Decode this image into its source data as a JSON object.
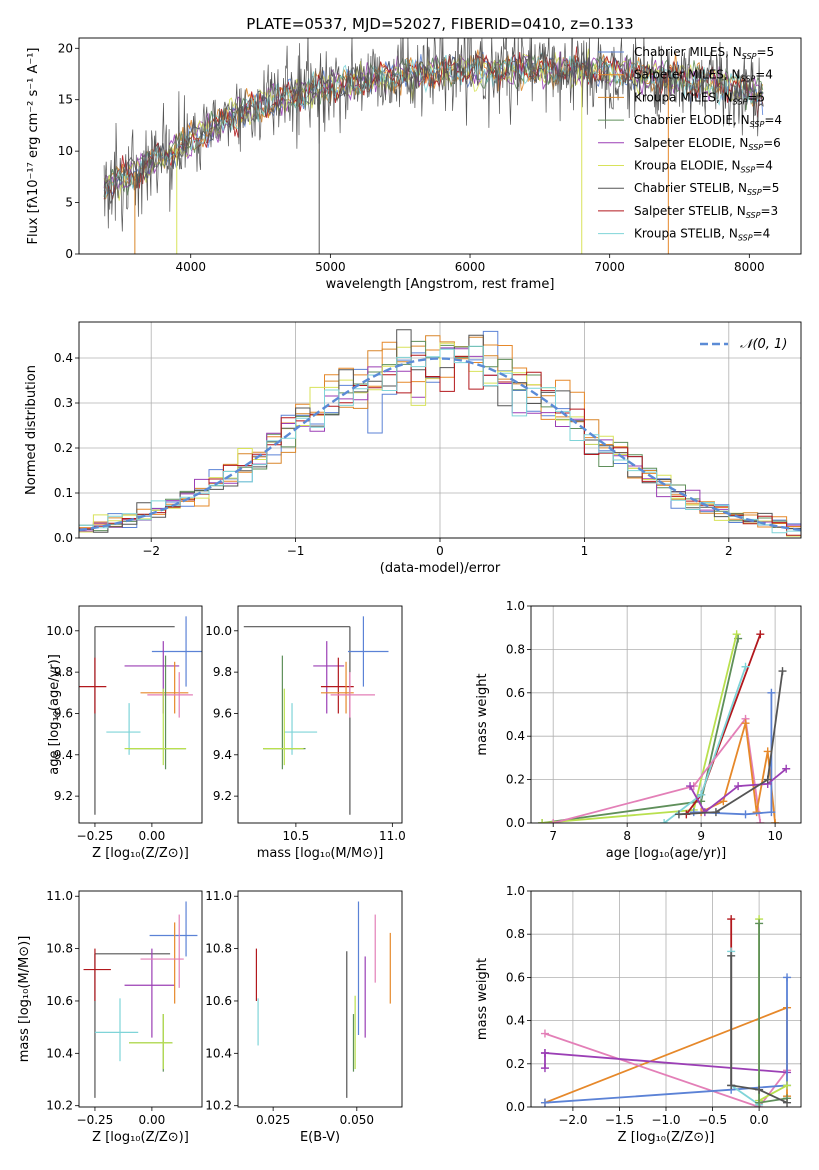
{
  "figure": {
    "title": "PLATE=0537, MJD=52027, FIBERID=0410, z=0.133"
  },
  "colors": {
    "Chabrier MILES": "#5b82d6",
    "Salpeter MILES": "#e6882a",
    "Kroupa MILES": "#d9862a",
    "Chabrier ELODIE": "#5f8f5a",
    "Salpeter ELODIE": "#9b3fb5",
    "Kroupa ELODIE": "#d8e25a",
    "Chabrier STELIB": "#555555",
    "Salpeter STELIB": "#b2181d",
    "Kroupa STELIB": "#7fd4d8",
    "normal": "#5b8bd6",
    "pink": "#e37fb7",
    "lime": "#b9e04e"
  },
  "chart_data": [
    {
      "id": "spectrum",
      "type": "line",
      "xlabel": "wavelength [Angstrom, rest frame]",
      "ylabel": "Flux [fλ10⁻¹⁷ erg cm⁻² s⁻¹ A⁻¹]",
      "xlim": [
        3200,
        8370
      ],
      "ylim": [
        0,
        21
      ],
      "xticks": [
        4000,
        5000,
        6000,
        7000,
        8000
      ],
      "yticks": [
        0,
        5,
        10,
        15,
        20
      ],
      "legend_position": "top-right",
      "legend": [
        {
          "label": "Chabrier MILES, N",
          "sub": "SSP",
          "tail": "=5",
          "key": "Chabrier MILES"
        },
        {
          "label": "Salpeter MILES, N",
          "sub": "SSP",
          "tail": "=4",
          "key": "Salpeter MILES"
        },
        {
          "label": "Kroupa MILES, N",
          "sub": "SSP",
          "tail": "=5",
          "key": "Kroupa MILES"
        },
        {
          "label": "Chabrier ELODIE, N",
          "sub": "SSP",
          "tail": "=4",
          "key": "Chabrier ELODIE"
        },
        {
          "label": "Salpeter ELODIE, N",
          "sub": "SSP",
          "tail": "=6",
          "key": "Salpeter ELODIE"
        },
        {
          "label": "Kroupa ELODIE, N",
          "sub": "SSP",
          "tail": "=4",
          "key": "Kroupa ELODIE"
        },
        {
          "label": "Chabrier STELIB, N",
          "sub": "SSP",
          "tail": "=5",
          "key": "Chabrier STELIB"
        },
        {
          "label": "Salpeter STELIB, N",
          "sub": "SSP",
          "tail": "=3",
          "key": "Salpeter STELIB"
        },
        {
          "label": "Kroupa STELIB, N",
          "sub": "SSP",
          "tail": "=4",
          "key": "Kroupa STELIB"
        }
      ],
      "continuum": [
        [
          3380,
          6.5
        ],
        [
          3600,
          8.0
        ],
        [
          3800,
          9.5
        ],
        [
          4000,
          11.0
        ],
        [
          4300,
          13.5
        ],
        [
          4600,
          15.0
        ],
        [
          5000,
          16.3
        ],
        [
          5500,
          17.5
        ],
        [
          6000,
          17.8
        ],
        [
          6500,
          18.0
        ],
        [
          7000,
          17.8
        ],
        [
          7500,
          17.0
        ],
        [
          7800,
          16.5
        ],
        [
          8100,
          15.3
        ]
      ],
      "data_noise_amplitude": 2.0,
      "model_dropouts": [
        {
          "key": "Kroupa MILES",
          "x": 3600
        },
        {
          "key": "Kroupa ELODIE",
          "x": 3900
        },
        {
          "key": "Kroupa ELODIE",
          "x": 6800
        },
        {
          "key": "Salpeter MILES",
          "x": 7420
        },
        {
          "key": "Chabrier STELIB",
          "x": 4920
        }
      ]
    },
    {
      "id": "residuals",
      "type": "histogram",
      "xlabel": "(data-model)/error",
      "ylabel": "Normed distribution",
      "xlim": [
        -2.5,
        2.5
      ],
      "ylim": [
        0,
        0.48
      ],
      "xticks": [
        -2,
        -1,
        0,
        1,
        2
      ],
      "yticks": [
        0.0,
        0.1,
        0.2,
        0.3,
        0.4
      ],
      "grid": true,
      "bin_width": 0.1,
      "legend_label": "N(0,1)",
      "legend_position": "top-right"
    },
    {
      "id": "age_vs_Z",
      "type": "scatter",
      "xlabel": "Z [log₁₀(Z/Z⊙)]",
      "ylabel": "age  [log₁₀(age/yr)]",
      "xlim": [
        -0.32,
        0.22
      ],
      "ylim": [
        9.07,
        10.12
      ],
      "xticks": [
        -0.25,
        0.0
      ],
      "yticks": [
        9.2,
        9.4,
        9.6,
        9.8,
        10.0
      ],
      "points": [
        {
          "c": "#555555",
          "x": -0.25,
          "xl": -0.25,
          "xh": 0.1,
          "y": 10.02,
          "yl": 9.11,
          "yh": 10.02
        },
        {
          "c": "#5b82d6",
          "x": 0.15,
          "xl": 0.0,
          "xh": 0.22,
          "y": 9.9,
          "yl": 9.73,
          "yh": 10.07
        },
        {
          "c": "#9b3fb5",
          "x": 0.05,
          "xl": -0.12,
          "xh": 0.12,
          "y": 9.83,
          "yl": 9.6,
          "yh": 9.95
        },
        {
          "c": "#b2181d",
          "x": -0.25,
          "xl": -0.32,
          "xh": -0.2,
          "y": 9.73,
          "yl": 9.6,
          "yh": 9.87
        },
        {
          "c": "#e6882a",
          "x": 0.1,
          "xl": -0.05,
          "xh": 0.16,
          "y": 9.7,
          "yl": 9.6,
          "yh": 9.85
        },
        {
          "c": "#e37fb7",
          "x": 0.12,
          "xl": -0.02,
          "xh": 0.18,
          "y": 9.69,
          "yl": 9.58,
          "yh": 9.8
        },
        {
          "c": "#7fd4d8",
          "x": -0.1,
          "xl": -0.2,
          "xh": -0.05,
          "y": 9.51,
          "yl": 9.4,
          "yh": 9.65
        },
        {
          "c": "#5f8f5a",
          "x": 0.06,
          "xl": -0.1,
          "xh": 0.15,
          "y": 9.43,
          "yl": 9.33,
          "yh": 9.88
        },
        {
          "c": "#b9e04e",
          "x": 0.05,
          "xl": -0.12,
          "xh": 0.15,
          "y": 9.43,
          "yl": 9.35,
          "yh": 9.72
        }
      ]
    },
    {
      "id": "age_vs_mass",
      "type": "scatter",
      "xlabel": "mass [log₁₀(M/M⊙)]",
      "ylabel": "",
      "xlim": [
        10.2,
        11.05
      ],
      "ylim": [
        9.07,
        10.12
      ],
      "xticks": [
        10.5,
        11.0
      ],
      "yticks": [
        9.2,
        9.4,
        9.6,
        9.8,
        10.0
      ],
      "points": [
        {
          "c": "#555555",
          "x": 10.78,
          "xl": 10.23,
          "xh": 10.78,
          "y": 10.02,
          "yl": 9.11,
          "yh": 10.02
        },
        {
          "c": "#5b82d6",
          "x": 10.85,
          "xl": 10.77,
          "xh": 10.98,
          "y": 9.9,
          "yl": 9.73,
          "yh": 10.07
        },
        {
          "c": "#9b3fb5",
          "x": 10.66,
          "xl": 10.59,
          "xh": 10.75,
          "y": 9.83,
          "yl": 9.6,
          "yh": 9.95
        },
        {
          "c": "#b2181d",
          "x": 10.72,
          "xl": 10.63,
          "xh": 10.8,
          "y": 9.73,
          "yl": 9.6,
          "yh": 9.87
        },
        {
          "c": "#e6882a",
          "x": 10.76,
          "xl": 10.63,
          "xh": 10.8,
          "y": 9.7,
          "yl": 9.6,
          "yh": 9.85
        },
        {
          "c": "#e37fb7",
          "x": 10.78,
          "xl": 10.68,
          "xh": 10.91,
          "y": 9.69,
          "yl": 9.58,
          "yh": 9.8
        },
        {
          "c": "#7fd4d8",
          "x": 10.48,
          "xl": 10.44,
          "xh": 10.61,
          "y": 9.51,
          "yl": 9.4,
          "yh": 9.65
        },
        {
          "c": "#5f8f5a",
          "x": 10.43,
          "xl": 10.33,
          "xh": 10.55,
          "y": 9.43,
          "yl": 9.33,
          "yh": 9.88
        },
        {
          "c": "#b9e04e",
          "x": 10.44,
          "xl": 10.33,
          "xh": 10.54,
          "y": 9.43,
          "yl": 9.35,
          "yh": 9.72
        }
      ]
    },
    {
      "id": "weight_vs_age",
      "type": "line",
      "xlabel": "age  [log₁₀(age/yr)]",
      "ylabel": "mass weight",
      "xlim": [
        6.7,
        10.35
      ],
      "ylim": [
        0,
        1.0
      ],
      "xticks": [
        7,
        8,
        9,
        10
      ],
      "yticks": [
        0.0,
        0.2,
        0.4,
        0.6,
        0.8,
        1.0
      ],
      "grid": true,
      "series": [
        {
          "c": "#5f8f5a",
          "pts": [
            [
              6.85,
              0.0
            ],
            [
              9.0,
              0.1
            ],
            [
              9.5,
              0.85
            ]
          ]
        },
        {
          "c": "#b9e04e",
          "pts": [
            [
              6.85,
              0.0
            ],
            [
              8.9,
              0.06
            ],
            [
              9.48,
              0.87
            ]
          ]
        },
        {
          "c": "#b2181d",
          "pts": [
            [
              8.8,
              0.04
            ],
            [
              9.0,
              0.13
            ],
            [
              9.8,
              0.87
            ]
          ]
        },
        {
          "c": "#7fd4d8",
          "pts": [
            [
              8.5,
              0.0
            ],
            [
              9.0,
              0.13
            ],
            [
              9.6,
              0.72
            ]
          ]
        },
        {
          "c": "#e37fb7",
          "pts": [
            [
              7.0,
              0.0
            ],
            [
              8.9,
              0.17
            ],
            [
              9.6,
              0.48
            ],
            [
              9.8,
              0.0
            ]
          ]
        },
        {
          "c": "#e6882a",
          "pts": [
            [
              9.0,
              0.05
            ],
            [
              9.3,
              0.1
            ],
            [
              9.6,
              0.46
            ],
            [
              9.75,
              0.05
            ],
            [
              9.9,
              0.33
            ],
            [
              10.0,
              0.0
            ]
          ]
        },
        {
          "c": "#5b82d6",
          "pts": [
            [
              8.9,
              0.05
            ],
            [
              9.6,
              0.04
            ],
            [
              9.95,
              0.05
            ],
            [
              9.95,
              0.6
            ]
          ]
        },
        {
          "c": "#9b3fb5",
          "pts": [
            [
              8.85,
              0.17
            ],
            [
              9.05,
              0.05
            ],
            [
              9.5,
              0.17
            ],
            [
              9.9,
              0.18
            ],
            [
              10.15,
              0.25
            ]
          ]
        },
        {
          "c": "#555555",
          "pts": [
            [
              8.7,
              0.04
            ],
            [
              9.2,
              0.05
            ],
            [
              9.9,
              0.2
            ],
            [
              10.1,
              0.7
            ]
          ]
        }
      ]
    },
    {
      "id": "mass_vs_Z",
      "type": "scatter",
      "xlabel": "Z [log₁₀(Z/Z⊙)]",
      "ylabel": "mass [log₁₀(M/M⊙)]",
      "xlim": [
        -0.32,
        0.22
      ],
      "ylim": [
        10.195,
        11.02
      ],
      "xticks": [
        -0.25,
        0.0
      ],
      "yticks": [
        10.2,
        10.4,
        10.6,
        10.8,
        11.0
      ],
      "points": [
        {
          "c": "#555555",
          "x": -0.25,
          "xl": -0.25,
          "xh": 0.08,
          "y": 10.78,
          "yl": 10.23,
          "yh": 10.78
        },
        {
          "c": "#5b82d6",
          "x": 0.15,
          "xl": -0.01,
          "xh": 0.2,
          "y": 10.85,
          "yl": 10.77,
          "yh": 10.98
        },
        {
          "c": "#9b3fb5",
          "x": -0.0,
          "xl": -0.12,
          "xh": 0.1,
          "y": 10.66,
          "yl": 10.46,
          "yh": 10.8
        },
        {
          "c": "#b2181d",
          "x": -0.25,
          "xl": -0.3,
          "xh": -0.18,
          "y": 10.72,
          "yl": 10.6,
          "yh": 10.8
        },
        {
          "c": "#e6882a",
          "x": 0.1,
          "xl": 0.1,
          "xh": 0.1,
          "y": 10.76,
          "yl": 10.59,
          "yh": 10.9
        },
        {
          "c": "#e37fb7",
          "x": 0.12,
          "xl": -0.05,
          "xh": 0.14,
          "y": 10.76,
          "yl": 10.65,
          "yh": 10.93
        },
        {
          "c": "#7fd4d8",
          "x": -0.14,
          "xl": -0.25,
          "xh": -0.06,
          "y": 10.48,
          "yl": 10.37,
          "yh": 10.61
        },
        {
          "c": "#5f8f5a",
          "x": 0.05,
          "xl": -0.1,
          "xh": 0.09,
          "y": 10.44,
          "yl": 10.33,
          "yh": 10.55
        },
        {
          "c": "#b9e04e",
          "x": 0.05,
          "xl": -0.1,
          "xh": 0.09,
          "y": 10.44,
          "yl": 10.34,
          "yh": 10.55
        }
      ]
    },
    {
      "id": "mass_vs_ebv",
      "type": "scatter",
      "xlabel": "E(B-V)",
      "ylabel": "",
      "xlim": [
        0.0145,
        0.0635
      ],
      "ylim": [
        10.195,
        11.02
      ],
      "xticks": [
        0.025,
        0.05
      ],
      "xticklabels": [
        "0.025",
        "0.050"
      ],
      "yticks": [
        10.2,
        10.4,
        10.6,
        10.8,
        11.0
      ],
      "points": [
        {
          "c": "#b2181d",
          "x": 0.02,
          "xl": 0.02,
          "xh": 0.02,
          "y": 10.72,
          "yl": 10.6,
          "yh": 10.8
        },
        {
          "c": "#7fd4d8",
          "x": 0.0205,
          "xl": 0.0205,
          "xh": 0.0205,
          "y": 10.48,
          "yl": 10.43,
          "yh": 10.61
        },
        {
          "c": "#555555",
          "x": 0.047,
          "xl": 0.047,
          "xh": 0.047,
          "y": 10.4,
          "yl": 10.23,
          "yh": 10.79
        },
        {
          "c": "#5f8f5a",
          "x": 0.049,
          "xl": 0.049,
          "xh": 0.049,
          "y": 10.44,
          "yl": 10.33,
          "yh": 10.55
        },
        {
          "c": "#b9e04e",
          "x": 0.0495,
          "xl": 0.0495,
          "xh": 0.0495,
          "y": 10.44,
          "yl": 10.34,
          "yh": 10.62
        },
        {
          "c": "#5b82d6",
          "x": 0.0505,
          "xl": 0.0505,
          "xh": 0.0505,
          "y": 10.85,
          "yl": 10.47,
          "yh": 10.98
        },
        {
          "c": "#9b3fb5",
          "x": 0.0525,
          "xl": 0.0525,
          "xh": 0.0525,
          "y": 10.66,
          "yl": 10.46,
          "yh": 10.77
        },
        {
          "c": "#e37fb7",
          "x": 0.0555,
          "xl": 0.0555,
          "xh": 0.0555,
          "y": 10.76,
          "yl": 10.67,
          "yh": 10.93
        },
        {
          "c": "#e6882a",
          "x": 0.06,
          "xl": 0.06,
          "xh": 0.06,
          "y": 10.76,
          "yl": 10.59,
          "yh": 10.86
        }
      ]
    },
    {
      "id": "weight_vs_Z",
      "type": "line",
      "xlabel": "Z [log₁₀(Z/Z⊙)]",
      "ylabel": "mass weight",
      "xlim": [
        -2.45,
        0.45
      ],
      "ylim": [
        0,
        1.0
      ],
      "xticks": [
        -2.0,
        -1.5,
        -1.0,
        -0.5,
        0.0
      ],
      "xticklabels": [
        "−2.0",
        "−1.5",
        "−1.0",
        "−0.5",
        "0.0"
      ],
      "yticks": [
        0.0,
        0.2,
        0.4,
        0.6,
        0.8,
        1.0
      ],
      "grid": true,
      "series": [
        {
          "c": "#e6882a",
          "pts": [
            [
              -2.3,
              0.02
            ],
            [
              0.3,
              0.46
            ],
            [
              0.3,
              0.05
            ]
          ]
        },
        {
          "c": "#e37fb7",
          "pts": [
            [
              -2.3,
              0.34
            ],
            [
              0.0,
              0.0
            ],
            [
              0.3,
              0.17
            ]
          ]
        },
        {
          "c": "#9b3fb5",
          "pts": [
            [
              -2.3,
              0.25
            ],
            [
              -2.3,
              0.18
            ],
            [
              -2.3,
              0.25
            ],
            [
              0.3,
              0.16
            ]
          ]
        },
        {
          "c": "#5b82d6",
          "pts": [
            [
              -2.3,
              0.02
            ],
            [
              -0.3,
              0.08
            ],
            [
              0.3,
              0.1
            ],
            [
              0.3,
              0.6
            ]
          ]
        },
        {
          "c": "#b2181d",
          "pts": [
            [
              -0.3,
              0.87
            ],
            [
              -0.3,
              0.1
            ]
          ]
        },
        {
          "c": "#7fd4d8",
          "pts": [
            [
              -0.3,
              0.72
            ],
            [
              -0.3,
              0.1
            ],
            [
              0.0,
              0.01
            ]
          ]
        },
        {
          "c": "#b9e04e",
          "pts": [
            [
              0.0,
              0.87
            ],
            [
              0.0,
              0.03
            ],
            [
              0.3,
              0.1
            ]
          ]
        },
        {
          "c": "#5f8f5a",
          "pts": [
            [
              0.0,
              0.85
            ],
            [
              0.0,
              0.02
            ],
            [
              0.3,
              0.04
            ]
          ]
        },
        {
          "c": "#555555",
          "pts": [
            [
              -0.3,
              0.7
            ],
            [
              -0.3,
              0.1
            ],
            [
              0.0,
              0.08
            ],
            [
              0.3,
              0.02
            ]
          ]
        }
      ]
    }
  ]
}
